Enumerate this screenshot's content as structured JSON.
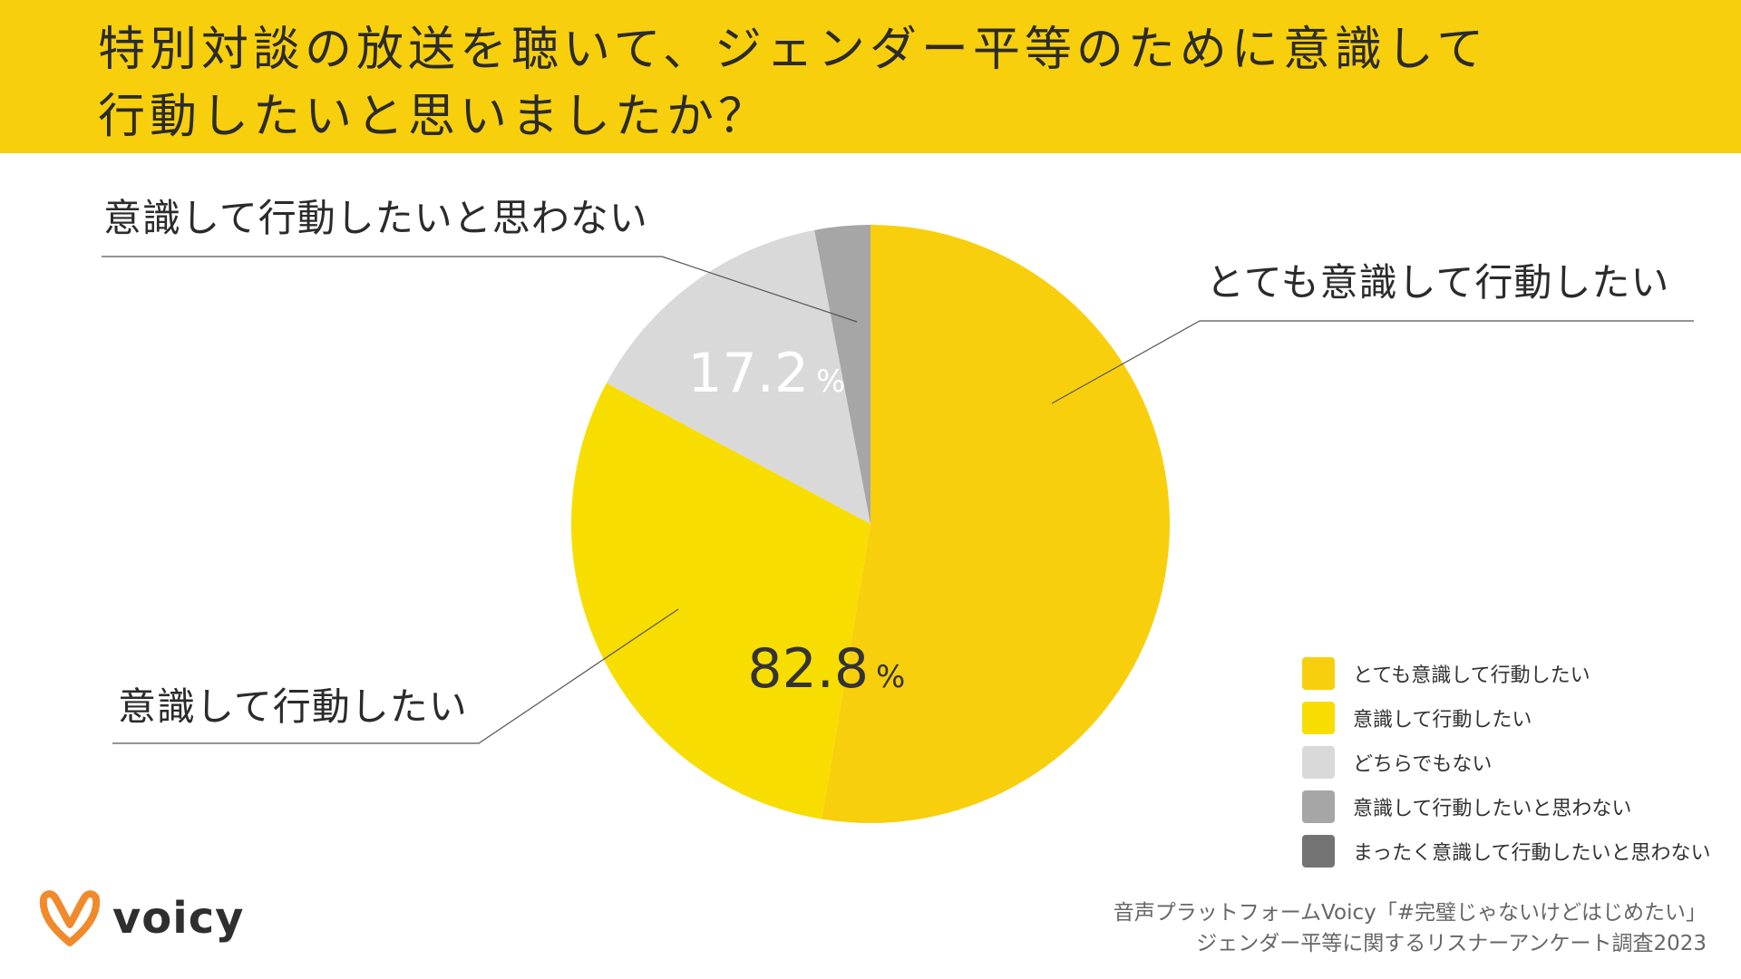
{
  "header": {
    "title_line1": "特別対談の放送を聴いて、ジェンダー平等のために意識して",
    "title_line2": "行動したいと思いましたか？"
  },
  "chart_data": {
    "type": "pie",
    "title": "特別対談の放送を聴いて、ジェンダー平等のために意識して行動したいと思いましたか？",
    "slices": [
      {
        "label": "とても意識して行動したい",
        "value": 52.6,
        "color": "#F8CF0C"
      },
      {
        "label": "意識して行動したい",
        "value": 30.2,
        "color": "#F8DD00"
      },
      {
        "label": "どちらでもない",
        "value": 14.2,
        "color": "#D9D9D9"
      },
      {
        "label": "意識して行動したいと思わない",
        "value": 3.0,
        "color": "#A6A6A6"
      },
      {
        "label": "まったく意識して行動したいと思わない",
        "value": 0.0,
        "color": "#737373"
      }
    ],
    "annotations": [
      {
        "number": "82.8",
        "unit": "%"
      },
      {
        "number": "17.2",
        "unit": "%"
      }
    ],
    "legend_position": "bottom-right"
  },
  "callouts": {
    "very_want": "とても意識して行動したい",
    "want": "意識して行動したい",
    "not_want": "意識して行動したいと思わない"
  },
  "logo": {
    "text": "voicy",
    "color": "#F18A2B",
    "icon": "voicy-logo-icon"
  },
  "source": {
    "line1": "音声プラットフォームVoicy「#完璧じゃないけどはじめたい」",
    "line2": "ジェンダー平等に関するリスナーアンケート調査2023"
  }
}
